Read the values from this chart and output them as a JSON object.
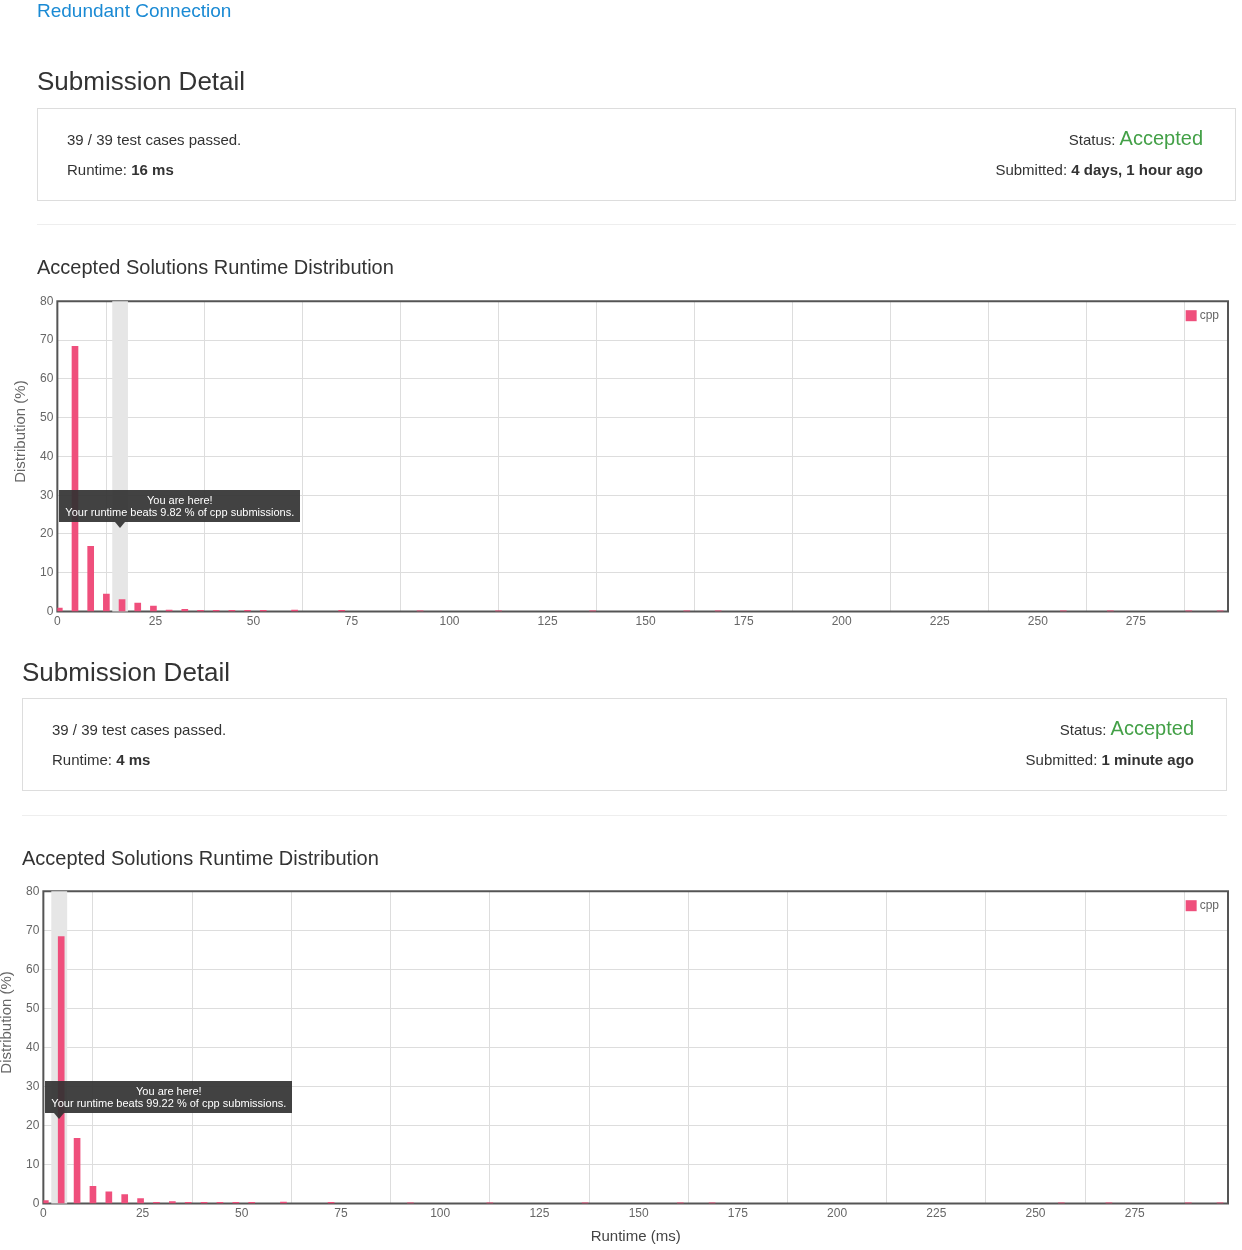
{
  "chart_data": [
    {
      "type": "bar",
      "title": "Accepted Solutions Runtime Distribution",
      "ylabel": "Distribution (%)",
      "annotations": [
        "Redundant Connection",
        "Submission Detail",
        "39 / 39 test cases passed.",
        "Runtime: 16 ms",
        "Status: Accepted",
        "Submitted: 4 days, 1 hour ago",
        "You are here!",
        "Your runtime beats 9.82 % of cpp submissions."
      ],
      "x": [
        0.5,
        4.5,
        8.5,
        12.5,
        16.5,
        20.5,
        24.5,
        28.5,
        32.5,
        36.5,
        40.5,
        44.5,
        48.5,
        52.5,
        60.5,
        72.5,
        92.5,
        112.5,
        136.5,
        160.5,
        168.5,
        256.5,
        268.5,
        288.5,
        296.5
      ],
      "series": [
        {
          "name": "cpp",
          "color": "#ef4f7c",
          "values": [
            0.9,
            68.4,
            16.8,
            4.5,
            3.1,
            2.2,
            1.4,
            0.4,
            0.6,
            0.3,
            0.3,
            0.3,
            0.3,
            0.3,
            0.4,
            0.3,
            0.2,
            0.2,
            0.2,
            0.2,
            0.2,
            0.2,
            0.2,
            0.2,
            0.2
          ]
        }
      ],
      "bands": [
        {
          "axis": "x",
          "from": 14,
          "to": 18,
          "color": "#e6e6e6"
        }
      ],
      "xlim": [
        0,
        298.5
      ],
      "xticks": [
        0,
        25,
        50,
        75,
        100,
        125,
        150,
        175,
        200,
        225,
        250,
        275
      ],
      "ylim": [
        0,
        80
      ],
      "yticks": [
        0,
        10,
        20,
        30,
        40,
        50,
        60,
        70,
        80
      ],
      "grid": true,
      "legend": "top right"
    },
    {
      "type": "bar",
      "title": "Accepted Solutions Runtime Distribution",
      "xlabel": "Runtime (ms)",
      "ylabel": "Distribution (%)",
      "annotations": [
        "Submission Detail",
        "39 / 39 test cases passed.",
        "Runtime: 4 ms",
        "Status: Accepted",
        "Submitted: 1 minute ago",
        "You are here!",
        "Your runtime beats 99.22 % of cpp submissions."
      ],
      "x": [
        0.5,
        4.5,
        8.5,
        12.5,
        16.5,
        20.5,
        24.5,
        28.5,
        32.5,
        36.5,
        40.5,
        44.5,
        48.5,
        52.5,
        60.5,
        72.5,
        92.5,
        112.5,
        136.5,
        160.5,
        168.5,
        256.5,
        268.5,
        288.5,
        296.5
      ],
      "series": [
        {
          "name": "cpp",
          "color": "#ef4f7c",
          "values": [
            0.8,
            68.4,
            16.7,
            4.4,
            3.0,
            2.3,
            1.3,
            0.3,
            0.5,
            0.3,
            0.3,
            0.3,
            0.3,
            0.3,
            0.4,
            0.3,
            0.2,
            0.2,
            0.2,
            0.2,
            0.2,
            0.2,
            0.2,
            0.2,
            0.2
          ]
        }
      ],
      "bands": [
        {
          "axis": "x",
          "from": 2,
          "to": 6,
          "color": "#e6e6e6"
        }
      ],
      "xlim": [
        0,
        298.5
      ],
      "xticks": [
        0,
        25,
        50,
        75,
        100,
        125,
        150,
        175,
        200,
        225,
        250,
        275
      ],
      "ylim": [
        0,
        80
      ],
      "yticks": [
        0,
        10,
        20,
        30,
        40,
        50,
        60,
        70,
        80
      ],
      "grid": true,
      "legend": "top right"
    }
  ]
}
